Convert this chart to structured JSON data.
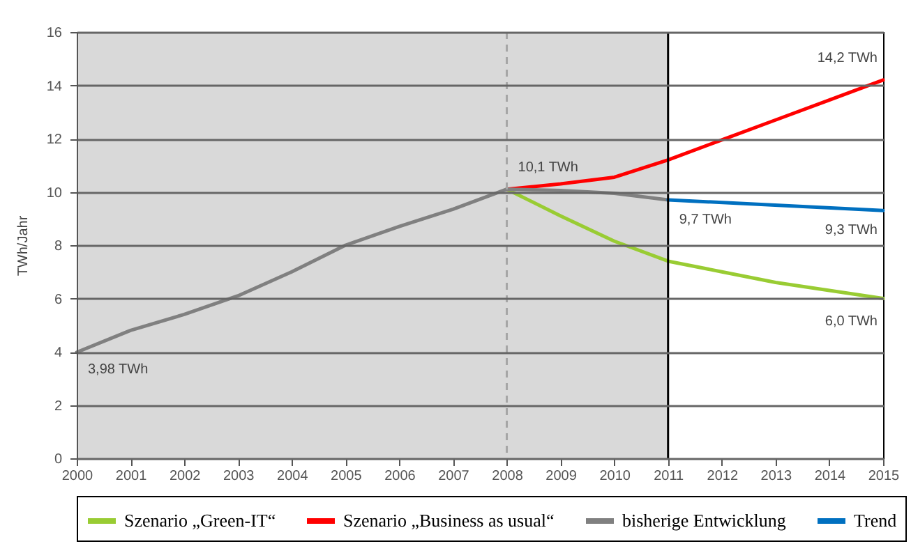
{
  "chart_data": {
    "type": "line",
    "ylabel": "TWh/Jahr",
    "series": [
      {
        "name": "Szenario „Green-IT“",
        "color": "#99cc33",
        "x": [
          2008,
          2009,
          2010,
          2011,
          2012,
          2013,
          2014,
          2015
        ],
        "values": [
          10.1,
          9.1,
          8.15,
          7.4,
          7.0,
          6.6,
          6.3,
          6.0
        ]
      },
      {
        "name": "Szenario „Business as usual“",
        "color": "#ff0000",
        "x": [
          2008,
          2009,
          2010,
          2011,
          2012,
          2013,
          2014,
          2015
        ],
        "values": [
          10.1,
          10.3,
          10.55,
          11.2,
          11.95,
          12.7,
          13.45,
          14.2
        ]
      },
      {
        "name": "bisherige Entwicklung",
        "color": "#808080",
        "x": [
          2000,
          2001,
          2002,
          2003,
          2004,
          2005,
          2006,
          2007,
          2008,
          2009,
          2010,
          2011
        ],
        "values": [
          3.98,
          4.8,
          5.4,
          6.1,
          7.0,
          8.0,
          8.7,
          9.35,
          10.1,
          10.05,
          9.95,
          9.7
        ]
      },
      {
        "name": "Trend",
        "color": "#0070c0",
        "x": [
          2011,
          2015
        ],
        "values": [
          9.7,
          9.3
        ]
      }
    ],
    "xlim": [
      2000,
      2015
    ],
    "xticks": [
      2000,
      2001,
      2002,
      2003,
      2004,
      2005,
      2006,
      2007,
      2008,
      2009,
      2010,
      2011,
      2012,
      2013,
      2014,
      2015
    ],
    "ylim": [
      0,
      16
    ],
    "yticks": [
      0,
      2,
      4,
      6,
      8,
      10,
      12,
      14,
      16
    ],
    "grid": "y",
    "legend": "bottom",
    "marker": "none",
    "line_style": "solid",
    "bands": [
      {
        "axis": "x",
        "from": 2000,
        "to": 2011,
        "color": "#d9d9d9"
      }
    ],
    "ref_lines": [
      {
        "axis": "x",
        "value": 2008,
        "color": "#a6a6a6",
        "line_style": "dashed"
      },
      {
        "axis": "x",
        "value": 2011,
        "color": "#000000",
        "line_style": "solid"
      }
    ],
    "annotations": [
      {
        "text": "3,98 TWh",
        "x": 2000,
        "y": 3.98
      },
      {
        "text": "10,1 TWh",
        "x": 2008,
        "y": 10.1
      },
      {
        "text": "9,7 TWh",
        "x": 2011,
        "y": 9.7
      },
      {
        "text": "9,3 TWh",
        "x": 2015,
        "y": 9.3
      },
      {
        "text": "6,0 TWh",
        "x": 2015,
        "y": 6.0
      },
      {
        "text": "14,2 TWh",
        "x": 2015,
        "y": 14.2
      }
    ]
  }
}
